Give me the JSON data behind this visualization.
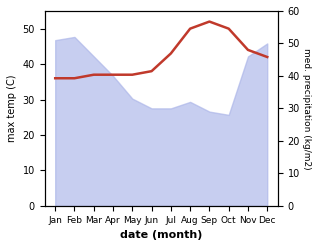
{
  "months": [
    "Jan",
    "Feb",
    "Mar",
    "Apr",
    "May",
    "Jun",
    "Jul",
    "Aug",
    "Sep",
    "Oct",
    "Nov",
    "Dec"
  ],
  "precipitation": [
    51,
    52,
    46,
    40,
    33,
    30,
    30,
    32,
    29,
    28,
    46,
    50
  ],
  "temperature": [
    36,
    36,
    37,
    37,
    37,
    38,
    43,
    50,
    52,
    50,
    44,
    42
  ],
  "precip_color": "#aab4e8",
  "temp_color": "#c0392b",
  "ylabel_left": "max temp (C)",
  "ylabel_right": "med. precipitation (kg/m2)",
  "xlabel": "date (month)",
  "ylim_left": [
    0,
    55
  ],
  "ylim_right": [
    0,
    60
  ],
  "yticks_left": [
    0,
    10,
    20,
    30,
    40,
    50
  ],
  "yticks_right": [
    0,
    10,
    20,
    30,
    40,
    50,
    60
  ],
  "background_color": "#ffffff",
  "fig_width": 3.18,
  "fig_height": 2.47,
  "dpi": 100
}
